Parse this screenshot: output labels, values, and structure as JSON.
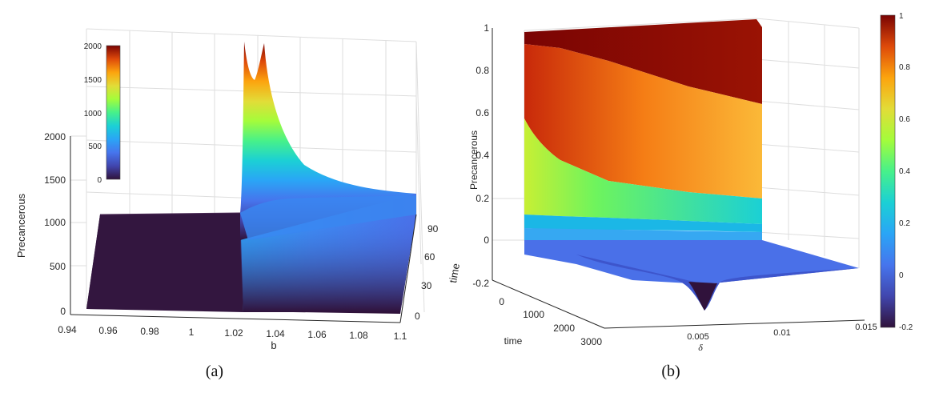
{
  "chart_data": [
    {
      "type": "surface",
      "caption": "(a)",
      "xlabel": "b",
      "ylabel": "time",
      "zlabel": "Precancerous",
      "x_ticks": [
        "0.94",
        "0.96",
        "0.98",
        "1",
        "1.02",
        "1.04",
        "1.06",
        "1.08",
        "1.1"
      ],
      "y_ticks": [
        "0",
        "30",
        "60",
        "90"
      ],
      "z_ticks": [
        "0",
        "500",
        "1000",
        "1500",
        "2000"
      ],
      "xlim": [
        0.94,
        1.1
      ],
      "ylim": [
        0,
        100
      ],
      "zlim": [
        0,
        2000
      ],
      "colorbar": {
        "ticks": [
          "0",
          "500",
          "1000",
          "1500",
          "2000"
        ],
        "range": [
          0,
          2000
        ],
        "colormap": "turbo",
        "placement": "inside-top-left"
      },
      "grid": true,
      "surface": {
        "b_range": [
          0.95,
          1.1
        ],
        "baseline_before_threshold": 0,
        "threshold_b": 1.02,
        "plateau_height_at_threshold": 1000,
        "peak_b": [
          1.022,
          1.028
        ],
        "peak_value": 2000,
        "value_at_b_1_1_late_time": 1000,
        "value_at_time_0": 0
      }
    },
    {
      "type": "surface",
      "caption": "(b)",
      "xlabel": "δ",
      "ylabel": "time",
      "zlabel": "Precancerous",
      "x_ticks": [
        "0.005",
        "0.01",
        "0.015"
      ],
      "y_ticks": [
        "0",
        "1000",
        "2000",
        "3000"
      ],
      "z_ticks": [
        "-0.2",
        "0",
        "0.2",
        "0.4",
        "0.6",
        "0.8",
        "1"
      ],
      "xlim": [
        0,
        0.015
      ],
      "ylim": [
        0,
        3000
      ],
      "zlim": [
        -0.2,
        1
      ],
      "colorbar": {
        "ticks": [
          "-0.2",
          "0",
          "0.2",
          "0.4",
          "0.6",
          "0.8",
          "1"
        ],
        "range": [
          -0.2,
          1
        ],
        "colormap": "turbo",
        "placement": "right"
      },
      "grid": true,
      "surface": {
        "layers_at_delta_0": [
          1.0,
          0.6,
          0.15,
          0.0
        ],
        "layers_at_delta_0_015": [
          1.0,
          0.6,
          0.22,
          0.0
        ],
        "dip_delta": 0.005,
        "dip_min_value": -0.2
      }
    }
  ]
}
